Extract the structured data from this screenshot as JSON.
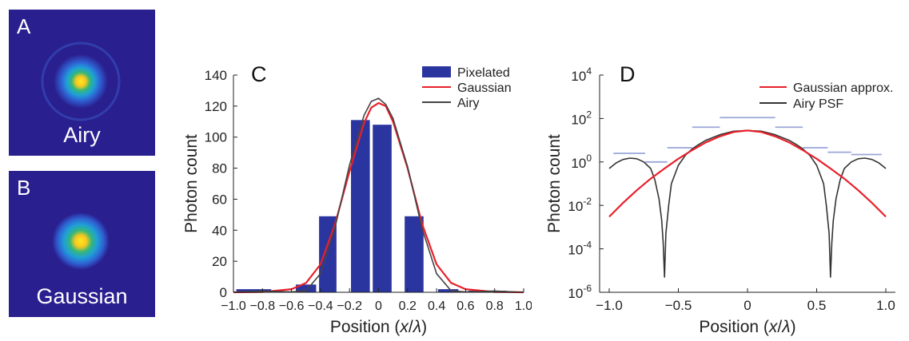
{
  "panels": {
    "a": {
      "letter": "A",
      "caption": "Airy"
    },
    "b": {
      "letter": "B",
      "caption": "Gaussian"
    }
  },
  "chart_data": [
    {
      "type": "bar",
      "panel_letter": "C",
      "xlabel": "Position (x/λ)",
      "ylabel": "Photon count",
      "xlim": [
        -1.0,
        1.0
      ],
      "ylim": [
        0,
        140
      ],
      "xticks": [
        "−1.0",
        "−0.8",
        "−0.6",
        "−0.4",
        "−0.2",
        "0",
        "0.2",
        "0.4",
        "0.6",
        "0.8",
        "1.0"
      ],
      "xtick_values": [
        -1.0,
        -0.8,
        -0.6,
        -0.4,
        -0.2,
        0,
        0.2,
        0.4,
        0.6,
        0.8,
        1.0
      ],
      "yticks": [
        0,
        20,
        40,
        60,
        80,
        100,
        120,
        140
      ],
      "legend_position": "top-right",
      "colors": {
        "bars": "#2b35a0",
        "gaussian": "#e8202a",
        "airy": "#444444"
      },
      "series": [
        {
          "name": "Pixelated",
          "type": "bar",
          "bars": [
            {
              "x0": -0.98,
              "x1": -0.74,
              "value": 2
            },
            {
              "x0": -0.57,
              "x1": -0.43,
              "value": 5
            },
            {
              "x0": -0.41,
              "x1": -0.29,
              "value": 49
            },
            {
              "x0": -0.19,
              "x1": -0.06,
              "value": 111
            },
            {
              "x0": -0.04,
              "x1": 0.09,
              "value": 108
            },
            {
              "x0": 0.18,
              "x1": 0.31,
              "value": 49
            },
            {
              "x0": 0.41,
              "x1": 0.55,
              "value": 2
            },
            {
              "x0": 0.62,
              "x1": 0.88,
              "value": 1
            }
          ]
        },
        {
          "name": "Gaussian",
          "type": "line",
          "x": [
            -1.0,
            -0.8,
            -0.6,
            -0.5,
            -0.4,
            -0.3,
            -0.2,
            -0.1,
            -0.05,
            0,
            0.05,
            0.1,
            0.2,
            0.3,
            0.4,
            0.5,
            0.6,
            0.8,
            1.0
          ],
          "y": [
            0,
            0.2,
            2,
            6,
            18,
            44,
            78,
            109,
            119,
            122,
            120,
            110,
            80,
            44,
            18,
            6,
            2,
            0.2,
            0
          ]
        },
        {
          "name": "Airy",
          "type": "line",
          "x": [
            -1.0,
            -0.8,
            -0.6,
            -0.5,
            -0.4,
            -0.3,
            -0.2,
            -0.1,
            -0.05,
            0,
            0.05,
            0.1,
            0.2,
            0.3,
            0.4,
            0.5,
            0.6,
            0.8,
            1.0
          ],
          "y": [
            0,
            0.8,
            0.2,
            1,
            12,
            42,
            82,
            114,
            123,
            125,
            121,
            112,
            81,
            41,
            12,
            1,
            0.2,
            0.8,
            0
          ]
        }
      ]
    },
    {
      "type": "line",
      "panel_letter": "D",
      "xlabel": "Position (x/λ)",
      "ylabel": "Photon count",
      "xlim": [
        -1.0,
        1.0
      ],
      "ylim": [
        1e-06,
        10000.0
      ],
      "yscale": "log",
      "xticks": [
        "−1.0",
        "−0.5",
        "0",
        "0.5",
        "1.0"
      ],
      "xtick_values": [
        -1.0,
        -0.5,
        0,
        0.5,
        1.0
      ],
      "yticks": [
        {
          "value": 1e-06,
          "base": "10",
          "exp": "-6"
        },
        {
          "value": 0.0001,
          "base": "10",
          "exp": "-4"
        },
        {
          "value": 0.01,
          "base": "10",
          "exp": "-2"
        },
        {
          "value": 1,
          "base": "10",
          "exp": "0"
        },
        {
          "value": 100,
          "base": "10",
          "exp": "2"
        },
        {
          "value": 10000,
          "base": "10",
          "exp": "4"
        }
      ],
      "legend_position": "top-right",
      "colors": {
        "gaussian": "#e8202a",
        "airy": "#333333",
        "pixel_levels": "#9aa6d8"
      },
      "series": [
        {
          "name": "Gaussian approx.",
          "x": [
            -1.0,
            -0.9,
            -0.8,
            -0.7,
            -0.6,
            -0.5,
            -0.4,
            -0.3,
            -0.2,
            -0.1,
            0,
            0.1,
            0.2,
            0.3,
            0.4,
            0.5,
            0.6,
            0.7,
            0.8,
            0.9,
            1.0
          ],
          "y": [
            0.003,
            0.013,
            0.05,
            0.17,
            0.5,
            1.4,
            3.5,
            8,
            15,
            24,
            28,
            24,
            15,
            8,
            3.5,
            1.4,
            0.5,
            0.17,
            0.05,
            0.013,
            0.003
          ]
        },
        {
          "name": "Airy PSF",
          "x": [
            -1.0,
            -0.95,
            -0.9,
            -0.85,
            -0.8,
            -0.75,
            -0.7,
            -0.67,
            -0.64,
            -0.62,
            -0.61,
            -0.6,
            -0.59,
            -0.57,
            -0.55,
            -0.5,
            -0.45,
            -0.4,
            -0.35,
            -0.3,
            -0.2,
            -0.1,
            0,
            0.1,
            0.2,
            0.3,
            0.35,
            0.4,
            0.45,
            0.5,
            0.55,
            0.57,
            0.59,
            0.6,
            0.61,
            0.62,
            0.64,
            0.67,
            0.7,
            0.75,
            0.8,
            0.85,
            0.9,
            0.95,
            1.0
          ],
          "y": [
            0.5,
            0.9,
            1.3,
            1.5,
            1.4,
            1.0,
            0.5,
            0.15,
            0.02,
            0.002,
            0.0002,
            5e-06,
            0.0005,
            0.01,
            0.1,
            0.7,
            2.0,
            4.0,
            6.5,
            10,
            18,
            26,
            28,
            26,
            18,
            10,
            6.5,
            4.0,
            2.0,
            0.7,
            0.1,
            0.01,
            0.0005,
            5e-06,
            0.0002,
            0.002,
            0.02,
            0.15,
            0.5,
            1.0,
            1.4,
            1.5,
            1.3,
            0.9,
            0.5
          ]
        }
      ],
      "pixel_levels": [
        {
          "x0": -0.97,
          "x1": -0.74,
          "y": 2.5
        },
        {
          "x0": -0.74,
          "x1": -0.58,
          "y": 1.0
        },
        {
          "x0": -0.58,
          "x1": -0.4,
          "y": 4.5
        },
        {
          "x0": -0.4,
          "x1": -0.2,
          "y": 40
        },
        {
          "x0": -0.2,
          "x1": 0.2,
          "y": 110
        },
        {
          "x0": 0.2,
          "x1": 0.4,
          "y": 40
        },
        {
          "x0": 0.4,
          "x1": 0.58,
          "y": 4.5
        },
        {
          "x0": 0.58,
          "x1": 0.75,
          "y": 2.8
        },
        {
          "x0": 0.75,
          "x1": 0.97,
          "y": 2.2
        }
      ]
    }
  ]
}
